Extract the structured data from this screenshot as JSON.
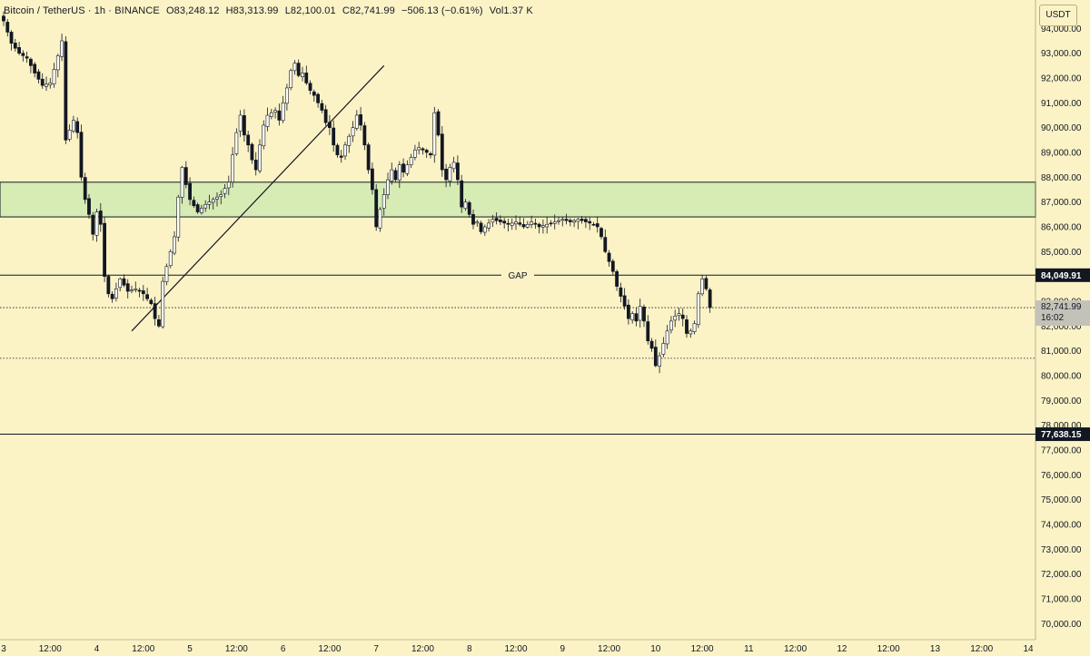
{
  "legend": {
    "symbol": "Bitcoin / TetherUS · 1h · BINANCE",
    "open": "O83,248.12",
    "high": "H83,313.99",
    "low": "L82,100.01",
    "close": "C82,741.99",
    "change": "−506.13 (−0.61%)",
    "volume": "Vol1.37 K"
  },
  "currency_button": "USDT",
  "colors": {
    "background": "#fbf3c6",
    "candle_body": "#ffffff",
    "candle_outline": "#131722",
    "zone_fill": "#d7ebb4",
    "line": "#131722",
    "price_tag_bg": "#c4c1b8"
  },
  "chart_data": {
    "type": "candlestick",
    "yrange": [
      69500,
      95000
    ],
    "y_ticks": [
      94000,
      93000,
      92000,
      91000,
      90000,
      89000,
      88000,
      87000,
      86000,
      85000,
      84000,
      83000,
      82000,
      81000,
      80000,
      79000,
      78000,
      77000,
      76000,
      75000,
      74000,
      73000,
      72000,
      71000,
      70000
    ],
    "y_tick_labels": [
      "94,000.00",
      "93,000.00",
      "92,000.00",
      "91,000.00",
      "90,000.00",
      "89,000.00",
      "88,000.00",
      "87,000.00",
      "86,000.00",
      "85,000.00",
      "84,000.00",
      "83,000.00",
      "82,000.00",
      "81,000.00",
      "80,000.00",
      "79,000.00",
      "78,000.00",
      "77,000.00",
      "76,000.00",
      "75,000.00",
      "74,000.00",
      "73,000.00",
      "72,000.00",
      "71,000.00",
      "70,000.00"
    ],
    "x_range_hours": [
      0,
      264
    ],
    "x_ticks": [
      {
        "h": 0,
        "label": "3"
      },
      {
        "h": 12,
        "label": "12:00"
      },
      {
        "h": 24,
        "label": "4"
      },
      {
        "h": 36,
        "label": "12:00"
      },
      {
        "h": 48,
        "label": "5"
      },
      {
        "h": 60,
        "label": "12:00"
      },
      {
        "h": 72,
        "label": "6"
      },
      {
        "h": 84,
        "label": "12:00"
      },
      {
        "h": 96,
        "label": "7"
      },
      {
        "h": 108,
        "label": "12:00"
      },
      {
        "h": 120,
        "label": "8"
      },
      {
        "h": 132,
        "label": "12:00"
      },
      {
        "h": 144,
        "label": "9"
      },
      {
        "h": 156,
        "label": "12:00"
      },
      {
        "h": 168,
        "label": "10"
      },
      {
        "h": 180,
        "label": "12:00"
      },
      {
        "h": 192,
        "label": "11"
      },
      {
        "h": 204,
        "label": "12:00"
      },
      {
        "h": 216,
        "label": "12"
      },
      {
        "h": 228,
        "label": "12:00"
      },
      {
        "h": 240,
        "label": "13"
      },
      {
        "h": 252,
        "label": "12:00"
      },
      {
        "h": 264,
        "label": "14"
      }
    ],
    "close_path": [
      [
        0,
        94300
      ],
      [
        2,
        93400
      ],
      [
        4,
        93000
      ],
      [
        6,
        92800
      ],
      [
        8,
        92200
      ],
      [
        10,
        91700
      ],
      [
        12,
        91800
      ],
      [
        14,
        92900
      ],
      [
        15,
        93500
      ],
      [
        16,
        89500
      ],
      [
        18,
        90300
      ],
      [
        19,
        89800
      ],
      [
        20,
        88000
      ],
      [
        21,
        87100
      ],
      [
        22,
        86500
      ],
      [
        23,
        85700
      ],
      [
        24,
        86600
      ],
      [
        25,
        86100
      ],
      [
        26,
        84000
      ],
      [
        27,
        83300
      ],
      [
        28,
        83100
      ],
      [
        30,
        83900
      ],
      [
        32,
        83400
      ],
      [
        34,
        83500
      ],
      [
        36,
        83300
      ],
      [
        38,
        82900
      ],
      [
        39,
        82300
      ],
      [
        40,
        82000
      ],
      [
        41,
        83800
      ],
      [
        42,
        84400
      ],
      [
        44,
        85600
      ],
      [
        45,
        87200
      ],
      [
        46,
        88400
      ],
      [
        47,
        87700
      ],
      [
        48,
        87100
      ],
      [
        50,
        86600
      ],
      [
        52,
        86900
      ],
      [
        54,
        87100
      ],
      [
        56,
        87300
      ],
      [
        58,
        87800
      ],
      [
        59,
        88900
      ],
      [
        60,
        89800
      ],
      [
        61,
        90500
      ],
      [
        62,
        89700
      ],
      [
        63,
        89300
      ],
      [
        64,
        88700
      ],
      [
        65,
        88300
      ],
      [
        66,
        89300
      ],
      [
        67,
        90100
      ],
      [
        68,
        90500
      ],
      [
        70,
        90700
      ],
      [
        71,
        90300
      ],
      [
        72,
        91000
      ],
      [
        73,
        91600
      ],
      [
        74,
        92300
      ],
      [
        75,
        92600
      ],
      [
        76,
        92100
      ],
      [
        77,
        92200
      ],
      [
        78,
        91800
      ],
      [
        79,
        91500
      ],
      [
        80,
        91300
      ],
      [
        81,
        91000
      ],
      [
        82,
        90700
      ],
      [
        83,
        90200
      ],
      [
        84,
        90000
      ],
      [
        85,
        89300
      ],
      [
        86,
        88900
      ],
      [
        87,
        88800
      ],
      [
        88,
        89300
      ],
      [
        90,
        90000
      ],
      [
        91,
        90500
      ],
      [
        92,
        90100
      ],
      [
        93,
        89300
      ],
      [
        94,
        88300
      ],
      [
        95,
        87500
      ],
      [
        96,
        86000
      ],
      [
        97,
        86700
      ],
      [
        98,
        87300
      ],
      [
        99,
        87900
      ],
      [
        100,
        88300
      ],
      [
        101,
        87900
      ],
      [
        102,
        88500
      ],
      [
        103,
        88200
      ],
      [
        104,
        88500
      ],
      [
        106,
        89100
      ],
      [
        107,
        89200
      ],
      [
        109,
        89000
      ],
      [
        110,
        88900
      ],
      [
        111,
        90600
      ],
      [
        112,
        89700
      ],
      [
        113,
        88300
      ],
      [
        114,
        87900
      ],
      [
        115,
        88400
      ],
      [
        116,
        88600
      ],
      [
        117,
        87900
      ],
      [
        118,
        86800
      ],
      [
        119,
        87000
      ],
      [
        120,
        86500
      ],
      [
        121,
        86100
      ],
      [
        122,
        86200
      ],
      [
        123,
        85800
      ],
      [
        124,
        86000
      ],
      [
        126,
        86300
      ],
      [
        128,
        86200
      ],
      [
        130,
        86100
      ],
      [
        132,
        86200
      ],
      [
        134,
        86000
      ],
      [
        136,
        86200
      ],
      [
        138,
        86000
      ],
      [
        140,
        86100
      ],
      [
        142,
        86200
      ],
      [
        144,
        86300
      ],
      [
        146,
        86200
      ],
      [
        148,
        86300
      ],
      [
        150,
        86200
      ],
      [
        152,
        86100
      ],
      [
        153,
        86000
      ],
      [
        154,
        85600
      ],
      [
        155,
        85000
      ],
      [
        156,
        84600
      ],
      [
        157,
        84200
      ],
      [
        158,
        83600
      ],
      [
        159,
        83200
      ],
      [
        160,
        82800
      ],
      [
        161,
        82300
      ],
      [
        162,
        82500
      ],
      [
        163,
        82200
      ],
      [
        164,
        82800
      ],
      [
        165,
        82200
      ],
      [
        166,
        81400
      ],
      [
        167,
        81100
      ],
      [
        168,
        80400
      ],
      [
        169,
        80800
      ],
      [
        170,
        81300
      ],
      [
        171,
        81800
      ],
      [
        172,
        82200
      ],
      [
        173,
        82400
      ],
      [
        174,
        82500
      ],
      [
        175,
        82300
      ],
      [
        176,
        81700
      ],
      [
        177,
        81800
      ],
      [
        178,
        82100
      ],
      [
        179,
        83300
      ],
      [
        180,
        83900
      ],
      [
        181,
        83500
      ],
      [
        182,
        82741.99
      ]
    ],
    "zone": {
      "low": 86400,
      "high": 87800
    },
    "gap_level": 84049.91,
    "gap_label": "GAP",
    "gap_price_label": "84,049.91",
    "current_price": 82741.99,
    "current_price_label": "82,741.99",
    "countdown": "16:02",
    "support_dotted": 80700,
    "support_level": 77638.15,
    "support_price_label": "77,638.15",
    "trendline": [
      [
        33,
        81800
      ],
      [
        98,
        92500
      ]
    ]
  }
}
